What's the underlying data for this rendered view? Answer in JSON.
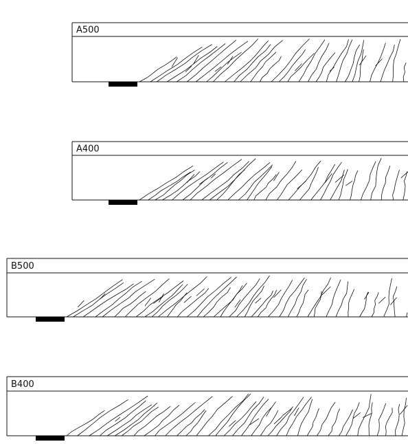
{
  "beams": [
    {
      "label": "A500"
    },
    {
      "label": "A400"
    },
    {
      "label": "B500"
    },
    {
      "label": "B400"
    }
  ]
}
